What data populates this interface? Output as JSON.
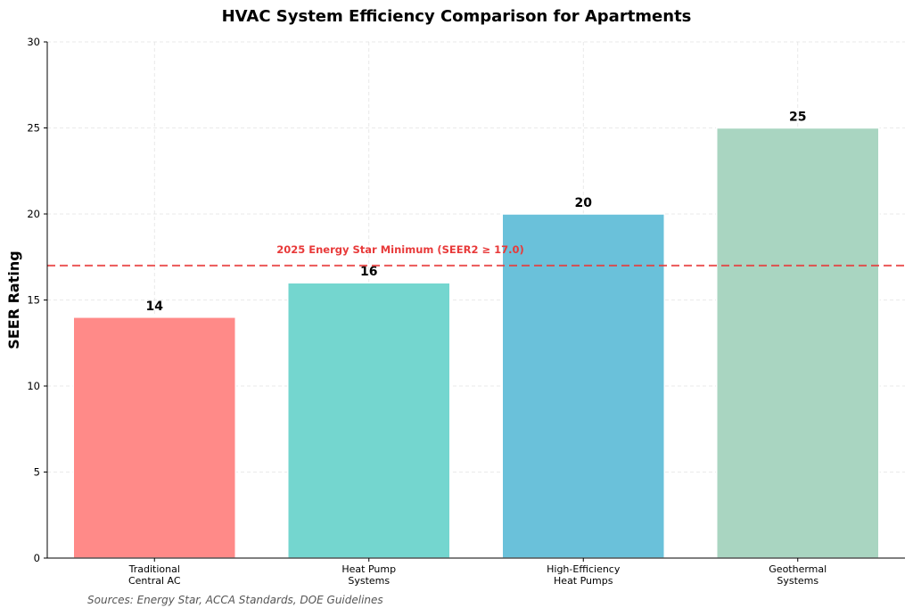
{
  "chart_data": {
    "type": "bar",
    "title": "HVAC System Efficiency Comparison for Apartments",
    "xlabel": "",
    "ylabel": "SEER Rating",
    "ylim": [
      0,
      30
    ],
    "yticks": [
      0,
      5,
      10,
      15,
      20,
      25,
      30
    ],
    "grid": true,
    "categories": [
      "Traditional\nCentral AC",
      "Heat Pump\nSystems",
      "High-Efficiency\nHeat Pumps",
      "Geothermal\nSystems"
    ],
    "values": [
      14,
      16,
      20,
      25
    ],
    "colors": [
      "#ff8a88",
      "#74d6cf",
      "#6ac1da",
      "#a9d5c1"
    ],
    "reference_line": {
      "value": 17.0,
      "label": "2025 Energy Star Minimum (SEER2 ≥ 17.0)",
      "color": "#e83a3a"
    },
    "source_note": "Sources: Energy Star, ACCA Standards, DOE Guidelines"
  }
}
